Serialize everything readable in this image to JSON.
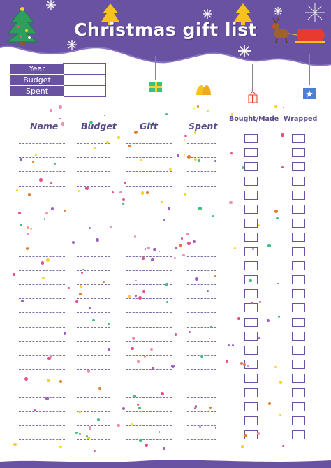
{
  "title": "Christmas gift list",
  "summary": {
    "rows": [
      {
        "label": "Year",
        "value": ""
      },
      {
        "label": "Budget",
        "value": ""
      },
      {
        "label": "Spent",
        "value": ""
      }
    ]
  },
  "columns": {
    "name": "Name",
    "budget": "Budget",
    "gift": "Gift",
    "spent": "Spent",
    "bought": "Bought/Made",
    "wrapped": "Wrapped"
  },
  "rows": [
    {
      "name": "",
      "budget": "",
      "gift": "",
      "spent": "",
      "bought": false,
      "wrapped": false
    },
    {
      "name": "",
      "budget": "",
      "gift": "",
      "spent": "",
      "bought": false,
      "wrapped": false
    },
    {
      "name": "",
      "budget": "",
      "gift": "",
      "spent": "",
      "bought": false,
      "wrapped": false
    },
    {
      "name": "",
      "budget": "",
      "gift": "",
      "spent": "",
      "bought": false,
      "wrapped": false
    },
    {
      "name": "",
      "budget": "",
      "gift": "",
      "spent": "",
      "bought": false,
      "wrapped": false
    },
    {
      "name": "",
      "budget": "",
      "gift": "",
      "spent": "",
      "bought": false,
      "wrapped": false
    },
    {
      "name": "",
      "budget": "",
      "gift": "",
      "spent": "",
      "bought": false,
      "wrapped": false
    },
    {
      "name": "",
      "budget": "",
      "gift": "",
      "spent": "",
      "bought": false,
      "wrapped": false
    },
    {
      "name": "",
      "budget": "",
      "gift": "",
      "spent": "",
      "bought": false,
      "wrapped": false
    },
    {
      "name": "",
      "budget": "",
      "gift": "",
      "spent": "",
      "bought": false,
      "wrapped": false
    },
    {
      "name": "",
      "budget": "",
      "gift": "",
      "spent": "",
      "bought": false,
      "wrapped": false
    },
    {
      "name": "",
      "budget": "",
      "gift": "",
      "spent": "",
      "bought": false,
      "wrapped": false
    },
    {
      "name": "",
      "budget": "",
      "gift": "",
      "spent": "",
      "bought": false,
      "wrapped": false
    },
    {
      "name": "",
      "budget": "",
      "gift": "",
      "spent": "",
      "bought": false,
      "wrapped": false
    },
    {
      "name": "",
      "budget": "",
      "gift": "",
      "spent": "",
      "bought": false,
      "wrapped": false
    },
    {
      "name": "",
      "budget": "",
      "gift": "",
      "spent": "",
      "bought": false,
      "wrapped": false
    },
    {
      "name": "",
      "budget": "",
      "gift": "",
      "spent": "",
      "bought": false,
      "wrapped": false
    },
    {
      "name": "",
      "budget": "",
      "gift": "",
      "spent": "",
      "bought": false,
      "wrapped": false
    },
    {
      "name": "",
      "budget": "",
      "gift": "",
      "spent": "",
      "bought": false,
      "wrapped": false
    },
    {
      "name": "",
      "budget": "",
      "gift": "",
      "spent": "",
      "bought": false,
      "wrapped": false
    },
    {
      "name": "",
      "budget": "",
      "gift": "",
      "spent": "",
      "bought": false,
      "wrapped": false
    },
    {
      "name": "",
      "budget": "",
      "gift": "",
      "spent": "",
      "bought": false,
      "wrapped": false
    }
  ],
  "colors": {
    "primary": "#6a52a3",
    "text": "#5a4a8c",
    "confetti": [
      "#e94e8a",
      "#f7d32b",
      "#3fbf7f",
      "#e87a2e",
      "#9b5fc0",
      "#f28cb3"
    ]
  },
  "icons": [
    "christmas-tree-icon",
    "reindeer-sleigh-icon",
    "star-tree-icon",
    "snowflake-icon",
    "gift-ornament-icon",
    "bells-ornament-icon"
  ]
}
